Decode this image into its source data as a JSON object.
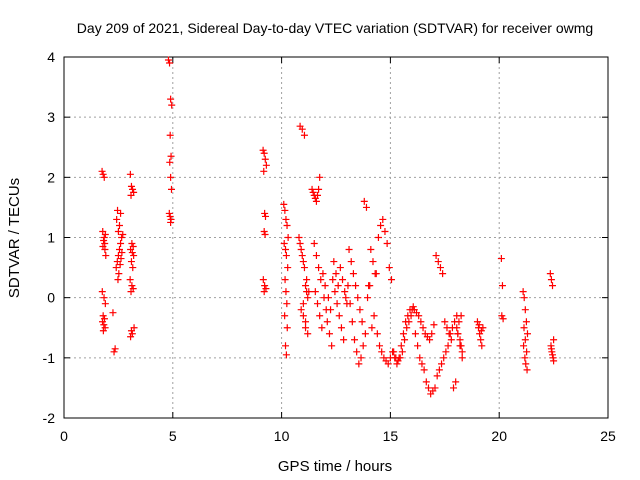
{
  "chart_data": {
    "type": "scatter",
    "title": "Day 209 of 2021, Sidereal Day-to-day VTEC variation (SDTVAR) for receiver owmg",
    "xlabel": "GPS time / hours",
    "ylabel": "SDTVAR / TECUs",
    "xlim": [
      0,
      25
    ],
    "ylim": [
      -2,
      4
    ],
    "xticks": [
      "0",
      "5",
      "10",
      "15",
      "20",
      "25"
    ],
    "yticks": [
      "-2",
      "-1",
      "0",
      "1",
      "2",
      "3",
      "4"
    ],
    "grid": true,
    "marker": "+",
    "color": "#ff0000",
    "series": [
      {
        "name": "SDTVAR",
        "x": [
          1.75,
          1.8,
          1.85,
          1.9,
          1.78,
          1.82,
          1.88,
          1.92,
          1.76,
          1.84,
          1.9,
          1.8,
          1.86,
          1.77,
          1.83,
          1.89,
          1.81,
          1.87,
          1.79,
          1.85,
          2.3,
          2.35,
          2.25,
          2.4,
          2.45,
          2.5,
          2.55,
          2.6,
          2.65,
          2.7,
          2.5,
          2.55,
          2.6,
          2.48,
          2.52,
          2.58,
          2.62,
          2.66,
          2.42,
          2.46,
          3.05,
          3.1,
          3.15,
          3.2,
          3.08,
          3.12,
          3.18,
          3.06,
          3.14,
          3.2,
          3.1,
          3.16,
          3.04,
          3.12,
          3.18,
          3.08,
          3.22,
          3.1,
          3.14,
          3.06,
          4.8,
          4.85,
          4.9,
          4.95,
          4.88,
          4.92,
          4.86,
          4.9,
          4.94,
          4.84,
          4.88,
          4.92,
          4.9,
          9.15,
          9.2,
          9.25,
          9.3,
          9.18,
          9.22,
          9.26,
          9.2,
          9.24,
          9.16,
          9.22,
          9.28,
          9.2,
          10.1,
          10.15,
          10.2,
          10.25,
          10.3,
          10.12,
          10.18,
          10.22,
          10.28,
          10.16,
          10.2,
          10.24,
          10.14,
          10.26,
          10.18,
          10.22,
          10.8,
          10.85,
          10.9,
          10.95,
          11.0,
          11.05,
          11.1,
          11.15,
          11.2,
          10.9,
          11.0,
          11.1,
          11.2,
          10.85,
          10.95,
          11.05,
          11.15,
          11.25,
          11.0,
          11.1,
          11.4,
          11.45,
          11.5,
          11.55,
          11.6,
          11.65,
          11.7,
          11.75,
          11.5,
          11.6,
          11.7,
          11.8,
          11.55,
          11.65,
          11.75,
          11.85,
          11.9,
          12.0,
          11.95,
          12.05,
          12.1,
          12.2,
          12.3,
          12.4,
          12.5,
          12.6,
          12.15,
          12.25,
          12.35,
          12.45,
          12.55,
          12.65,
          12.7,
          12.8,
          12.9,
          13.0,
          12.75,
          12.85,
          12.95,
          13.05,
          13.1,
          13.2,
          13.3,
          13.4,
          13.5,
          13.6,
          13.7,
          13.8,
          13.9,
          14.0,
          13.15,
          13.25,
          13.35,
          13.45,
          13.55,
          13.65,
          13.75,
          13.85,
          13.95,
          14.05,
          14.1,
          14.2,
          14.3,
          14.4,
          14.5,
          14.6,
          14.7,
          14.8,
          14.9,
          15.0,
          14.15,
          14.25,
          14.35,
          14.45,
          14.55,
          14.65,
          14.75,
          14.85,
          14.95,
          15.05,
          15.1,
          15.2,
          15.3,
          15.4,
          15.5,
          15.6,
          15.7,
          15.8,
          15.9,
          16.0,
          15.15,
          15.25,
          15.35,
          15.45,
          15.55,
          15.65,
          15.75,
          15.85,
          15.95,
          16.05,
          16.1,
          16.2,
          16.3,
          16.4,
          16.5,
          16.6,
          16.7,
          16.8,
          16.9,
          17.0,
          16.15,
          16.25,
          16.35,
          16.45,
          16.55,
          16.65,
          16.75,
          16.85,
          16.95,
          17.05,
          17.1,
          17.2,
          17.3,
          17.4,
          17.5,
          17.6,
          17.7,
          17.8,
          17.9,
          18.0,
          17.15,
          17.25,
          17.35,
          17.45,
          17.55,
          17.65,
          17.75,
          17.85,
          17.95,
          18.05,
          18.1,
          18.2,
          18.3,
          18.15,
          18.25,
          18.05,
          18.2,
          18.3,
          18.1,
          18.25,
          19.0,
          19.05,
          19.1,
          19.15,
          19.2,
          19.25,
          19.08,
          19.18,
          20.1,
          20.15,
          20.12,
          20.18,
          21.1,
          21.15,
          21.2,
          21.25,
          21.3,
          21.12,
          21.18,
          21.22,
          21.28,
          21.14,
          21.2,
          21.26,
          22.35,
          22.4,
          22.45,
          22.5,
          22.38,
          22.42,
          22.48,
          22.4,
          22.45,
          22.5
        ],
        "y": [
          2.1,
          2.05,
          2.0,
          1.05,
          1.1,
          0.95,
          0.8,
          0.7,
          0.1,
          0.0,
          -0.1,
          -0.3,
          -0.35,
          -0.4,
          -0.45,
          -0.5,
          -0.55,
          0.9,
          0.85,
          1.0,
          -0.9,
          -0.85,
          -0.25,
          0.5,
          0.6,
          0.7,
          0.8,
          0.9,
          1.0,
          1.05,
          1.1,
          1.2,
          1.4,
          0.3,
          0.4,
          0.55,
          0.65,
          0.75,
          1.3,
          1.45,
          2.05,
          1.85,
          1.8,
          1.75,
          1.7,
          0.9,
          0.85,
          0.8,
          0.75,
          0.7,
          0.6,
          0.5,
          0.3,
          0.2,
          0.15,
          0.1,
          -0.5,
          -0.55,
          -0.6,
          -0.65,
          3.95,
          3.9,
          3.3,
          3.2,
          2.7,
          2.35,
          2.25,
          2.0,
          1.8,
          1.4,
          1.35,
          1.3,
          1.25,
          2.45,
          2.4,
          2.3,
          2.2,
          2.1,
          1.4,
          1.35,
          1.1,
          1.05,
          0.3,
          0.2,
          0.15,
          0.1,
          1.55,
          1.45,
          1.3,
          1.2,
          1.0,
          0.9,
          0.8,
          0.7,
          0.5,
          0.3,
          0.1,
          -0.1,
          -0.3,
          -0.5,
          -0.8,
          -0.95,
          1.0,
          0.9,
          0.8,
          0.7,
          0.6,
          0.5,
          0.2,
          0.1,
          0.0,
          -0.2,
          -0.3,
          -0.5,
          -0.6,
          2.85,
          2.8,
          2.7,
          0.3,
          0.1,
          -0.1,
          -0.4,
          1.8,
          1.75,
          1.7,
          1.65,
          1.6,
          1.7,
          1.8,
          2.0,
          0.9,
          0.7,
          0.5,
          0.3,
          0.1,
          -0.1,
          -0.3,
          -0.5,
          0.4,
          0.2,
          0.0,
          -0.2,
          -0.4,
          -0.6,
          -0.8,
          0.6,
          0.4,
          0.2,
          0.0,
          -0.2,
          0.3,
          0.1,
          -0.1,
          -0.3,
          0.5,
          0.3,
          0.1,
          -0.1,
          -0.5,
          -0.7,
          0.0,
          0.2,
          0.8,
          0.6,
          0.4,
          0.2,
          0.0,
          -0.2,
          -0.4,
          1.6,
          1.5,
          0.2,
          -0.1,
          -0.4,
          -0.7,
          -0.9,
          -1.1,
          -1.0,
          -0.8,
          -0.6,
          0.0,
          0.2,
          0.8,
          0.6,
          0.4,
          -0.6,
          -0.8,
          -0.9,
          -1.0,
          -1.05,
          -1.1,
          -1.0,
          -0.5,
          -0.3,
          0.4,
          1.0,
          1.2,
          1.3,
          1.1,
          0.9,
          0.5,
          0.3,
          -0.9,
          -1.0,
          -1.1,
          -1.0,
          -0.8,
          -0.6,
          -0.4,
          -0.3,
          -0.2,
          -0.2,
          -0.9,
          -1.0,
          -1.05,
          -1.0,
          -0.9,
          -0.7,
          -0.5,
          -0.4,
          -0.3,
          -0.15,
          -0.2,
          -0.25,
          -0.3,
          -0.4,
          -0.5,
          -0.6,
          -0.65,
          -0.7,
          -0.6,
          -0.45,
          -0.6,
          -0.8,
          -1.0,
          -1.1,
          -1.2,
          -1.4,
          -1.5,
          -1.6,
          -1.55,
          -1.5,
          0.7,
          0.6,
          0.5,
          0.4,
          -0.4,
          -0.5,
          -0.6,
          -0.7,
          -1.5,
          -1.4,
          -1.3,
          -1.2,
          -1.1,
          -1.0,
          -0.9,
          -0.8,
          -0.6,
          -0.5,
          -0.4,
          -0.3,
          -0.6,
          -0.8,
          -1.0,
          -0.4,
          -0.3,
          -0.5,
          -0.7,
          -0.9,
          -0.6,
          -0.8,
          -0.4,
          -0.5,
          -0.6,
          -0.7,
          -0.8,
          -0.5,
          -0.45,
          -0.55,
          0.65,
          0.2,
          -0.3,
          -0.35,
          0.1,
          0.0,
          -0.2,
          -0.4,
          -0.6,
          -0.8,
          -1.0,
          -1.1,
          -1.2,
          -0.5,
          -0.7,
          -0.9,
          0.4,
          0.3,
          0.2,
          -0.7,
          -0.8,
          -0.9,
          -1.0,
          -0.85,
          -0.95,
          -1.05
        ]
      }
    ]
  }
}
